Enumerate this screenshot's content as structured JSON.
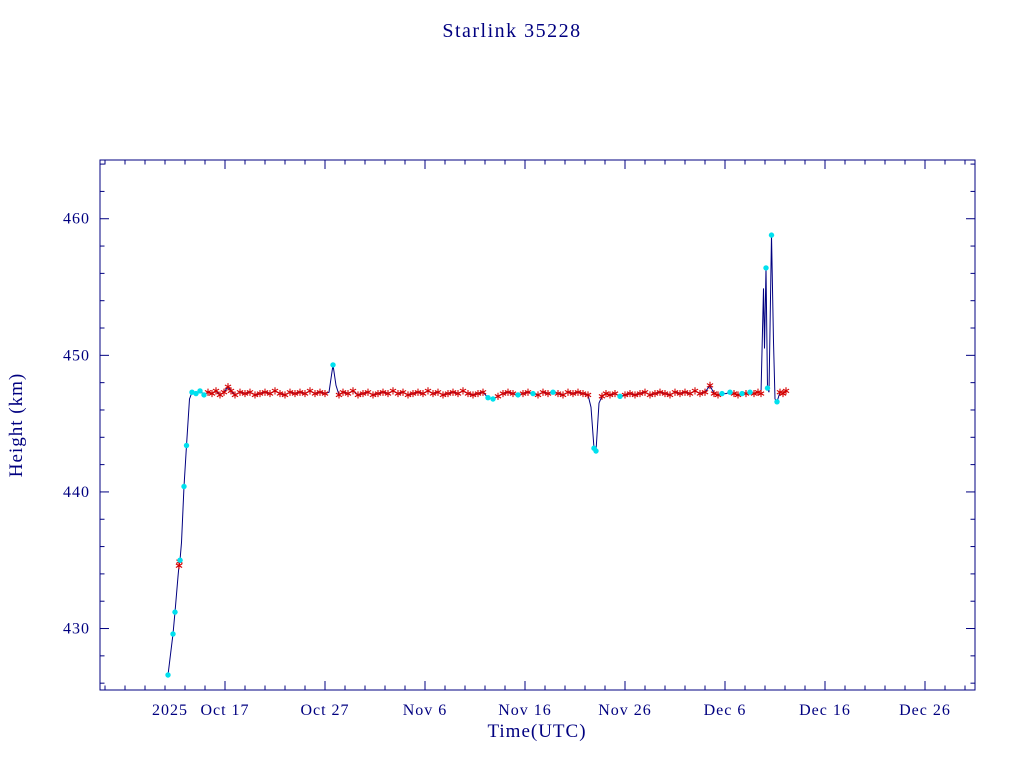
{
  "chart_data": {
    "type": "line",
    "title": "Starlink 35228",
    "xlabel": "Time(UTC)",
    "ylabel": "Height (km)",
    "legend": "none",
    "grid": false,
    "colors": {
      "axis": "#000080",
      "line": "#000080",
      "cyan_marker": "#00e0ee",
      "red_marker": "#d40000",
      "background": "#ffffff"
    },
    "x_axis": {
      "unit": "days since 2025-10-04 12:00 UTC",
      "min": 0,
      "max": 87.5,
      "year_label": "2025",
      "year_label_day": 7.0,
      "minor_start": 0.5,
      "minor_step": 2,
      "major_ticks": [
        {
          "day": 12.5,
          "label": "Oct 17"
        },
        {
          "day": 22.5,
          "label": "Oct 27"
        },
        {
          "day": 32.5,
          "label": "Nov 6"
        },
        {
          "day": 42.5,
          "label": "Nov 16"
        },
        {
          "day": 52.5,
          "label": "Nov 26"
        },
        {
          "day": 62.5,
          "label": "Dec 6"
        },
        {
          "day": 72.5,
          "label": "Dec 16"
        },
        {
          "day": 82.5,
          "label": "Dec 26"
        }
      ]
    },
    "y_axis": {
      "unit": "km",
      "min": 425.5,
      "max": 464.3,
      "minor_start": 426,
      "minor_step": 2,
      "major_ticks": [
        430,
        440,
        450,
        460
      ]
    },
    "line_points": [
      [
        6.8,
        426.6
      ],
      [
        7.0,
        427.8
      ],
      [
        7.3,
        429.6
      ],
      [
        7.5,
        431.2
      ],
      [
        7.8,
        433.8
      ],
      [
        7.9,
        434.6
      ],
      [
        8.0,
        435.0
      ],
      [
        8.15,
        436.3
      ],
      [
        8.4,
        440.4
      ],
      [
        8.65,
        443.4
      ],
      [
        8.95,
        446.8
      ],
      [
        9.2,
        447.3
      ],
      [
        9.6,
        447.2
      ],
      [
        10.0,
        447.4
      ],
      [
        10.4,
        447.1
      ],
      [
        10.8,
        447.3
      ],
      [
        11.2,
        447.2
      ],
      [
        11.6,
        447.4
      ],
      [
        12.0,
        447.1
      ],
      [
        12.4,
        447.3
      ],
      [
        12.8,
        447.7
      ],
      [
        13.1,
        447.4
      ],
      [
        13.5,
        447.1
      ],
      [
        14.0,
        447.3
      ],
      [
        14.5,
        447.2
      ],
      [
        15.0,
        447.3
      ],
      [
        15.5,
        447.1
      ],
      [
        16.0,
        447.2
      ],
      [
        16.5,
        447.3
      ],
      [
        17.0,
        447.2
      ],
      [
        17.5,
        447.4
      ],
      [
        18.0,
        447.2
      ],
      [
        18.5,
        447.1
      ],
      [
        19.0,
        447.3
      ],
      [
        19.5,
        447.2
      ],
      [
        20.0,
        447.3
      ],
      [
        20.5,
        447.2
      ],
      [
        21.0,
        447.4
      ],
      [
        21.5,
        447.2
      ],
      [
        22.0,
        447.3
      ],
      [
        22.5,
        447.2
      ],
      [
        22.9,
        447.3
      ],
      [
        23.3,
        449.3
      ],
      [
        23.6,
        447.8
      ],
      [
        23.9,
        447.1
      ],
      [
        24.3,
        447.3
      ],
      [
        24.8,
        447.2
      ],
      [
        25.3,
        447.4
      ],
      [
        25.8,
        447.1
      ],
      [
        26.3,
        447.2
      ],
      [
        26.8,
        447.3
      ],
      [
        27.3,
        447.1
      ],
      [
        27.8,
        447.2
      ],
      [
        28.3,
        447.3
      ],
      [
        28.8,
        447.2
      ],
      [
        29.3,
        447.4
      ],
      [
        29.8,
        447.2
      ],
      [
        30.3,
        447.3
      ],
      [
        30.8,
        447.1
      ],
      [
        31.3,
        447.2
      ],
      [
        31.8,
        447.3
      ],
      [
        32.3,
        447.2
      ],
      [
        32.8,
        447.4
      ],
      [
        33.3,
        447.2
      ],
      [
        33.8,
        447.3
      ],
      [
        34.3,
        447.1
      ],
      [
        34.8,
        447.2
      ],
      [
        35.3,
        447.3
      ],
      [
        35.8,
        447.2
      ],
      [
        36.3,
        447.4
      ],
      [
        36.8,
        447.2
      ],
      [
        37.3,
        447.1
      ],
      [
        37.8,
        447.2
      ],
      [
        38.3,
        447.3
      ],
      [
        38.8,
        446.9
      ],
      [
        39.3,
        446.8
      ],
      [
        39.8,
        447.0
      ],
      [
        40.3,
        447.2
      ],
      [
        40.8,
        447.3
      ],
      [
        41.3,
        447.2
      ],
      [
        41.8,
        447.1
      ],
      [
        42.3,
        447.2
      ],
      [
        42.8,
        447.3
      ],
      [
        43.3,
        447.2
      ],
      [
        43.8,
        447.1
      ],
      [
        44.3,
        447.3
      ],
      [
        44.8,
        447.2
      ],
      [
        45.3,
        447.3
      ],
      [
        45.8,
        447.2
      ],
      [
        46.3,
        447.1
      ],
      [
        46.8,
        447.3
      ],
      [
        47.3,
        447.2
      ],
      [
        47.8,
        447.3
      ],
      [
        48.3,
        447.2
      ],
      [
        48.8,
        447.1
      ],
      [
        49.1,
        446.2
      ],
      [
        49.4,
        443.2
      ],
      [
        49.6,
        443.0
      ],
      [
        49.9,
        446.5
      ],
      [
        50.2,
        447.0
      ],
      [
        50.6,
        447.2
      ],
      [
        51.0,
        447.1
      ],
      [
        51.5,
        447.2
      ],
      [
        52.0,
        447.0
      ],
      [
        52.5,
        447.1
      ],
      [
        53.0,
        447.2
      ],
      [
        53.5,
        447.1
      ],
      [
        54.0,
        447.2
      ],
      [
        54.5,
        447.3
      ],
      [
        55.0,
        447.1
      ],
      [
        55.5,
        447.2
      ],
      [
        56.0,
        447.3
      ],
      [
        56.5,
        447.2
      ],
      [
        57.0,
        447.1
      ],
      [
        57.5,
        447.3
      ],
      [
        58.0,
        447.2
      ],
      [
        58.5,
        447.3
      ],
      [
        59.0,
        447.2
      ],
      [
        59.5,
        447.4
      ],
      [
        60.0,
        447.2
      ],
      [
        60.5,
        447.3
      ],
      [
        61.0,
        447.8
      ],
      [
        61.4,
        447.2
      ],
      [
        61.8,
        447.1
      ],
      [
        62.2,
        447.2
      ],
      [
        62.6,
        447.2
      ],
      [
        63.0,
        447.3
      ],
      [
        63.4,
        447.2
      ],
      [
        63.8,
        447.1
      ],
      [
        64.2,
        447.2
      ],
      [
        64.6,
        447.2
      ],
      [
        65.0,
        447.3
      ],
      [
        65.4,
        447.2
      ],
      [
        65.8,
        447.3
      ],
      [
        66.1,
        447.2
      ],
      [
        66.35,
        454.9
      ],
      [
        66.45,
        450.5
      ],
      [
        66.6,
        456.4
      ],
      [
        66.75,
        447.6
      ],
      [
        66.9,
        447.3
      ],
      [
        67.15,
        458.8
      ],
      [
        67.35,
        451.0
      ],
      [
        67.5,
        446.8
      ],
      [
        67.7,
        446.6
      ],
      [
        68.0,
        447.3
      ],
      [
        68.3,
        447.2
      ],
      [
        68.6,
        447.4
      ]
    ],
    "cyan_points": [
      [
        6.8,
        426.6
      ],
      [
        7.3,
        429.6
      ],
      [
        7.5,
        431.2
      ],
      [
        8.0,
        435.0
      ],
      [
        8.4,
        440.4
      ],
      [
        8.65,
        443.4
      ],
      [
        9.2,
        447.3
      ],
      [
        9.6,
        447.2
      ],
      [
        10.0,
        447.4
      ],
      [
        10.4,
        447.1
      ],
      [
        23.3,
        449.3
      ],
      [
        38.8,
        446.9
      ],
      [
        39.3,
        446.8
      ],
      [
        41.8,
        447.1
      ],
      [
        43.3,
        447.2
      ],
      [
        45.3,
        447.3
      ],
      [
        49.4,
        443.2
      ],
      [
        49.6,
        443.0
      ],
      [
        52.0,
        447.0
      ],
      [
        62.2,
        447.2
      ],
      [
        63.0,
        447.3
      ],
      [
        64.2,
        447.2
      ],
      [
        65.0,
        447.3
      ],
      [
        66.6,
        456.4
      ],
      [
        66.75,
        447.6
      ],
      [
        67.15,
        458.8
      ],
      [
        67.7,
        446.6
      ]
    ],
    "red_points": [
      [
        7.9,
        434.6
      ],
      [
        7.95,
        434.9
      ],
      [
        10.8,
        447.3
      ],
      [
        11.2,
        447.2
      ],
      [
        11.6,
        447.4
      ],
      [
        12.0,
        447.1
      ],
      [
        12.4,
        447.3
      ],
      [
        12.8,
        447.7
      ],
      [
        13.1,
        447.4
      ],
      [
        13.5,
        447.1
      ],
      [
        14.0,
        447.3
      ],
      [
        14.5,
        447.2
      ],
      [
        15.0,
        447.3
      ],
      [
        15.5,
        447.1
      ],
      [
        16.0,
        447.2
      ],
      [
        16.5,
        447.3
      ],
      [
        17.0,
        447.2
      ],
      [
        17.5,
        447.4
      ],
      [
        18.0,
        447.2
      ],
      [
        18.5,
        447.1
      ],
      [
        19.0,
        447.3
      ],
      [
        19.5,
        447.2
      ],
      [
        20.0,
        447.3
      ],
      [
        20.5,
        447.2
      ],
      [
        21.0,
        447.4
      ],
      [
        21.5,
        447.2
      ],
      [
        22.0,
        447.3
      ],
      [
        22.5,
        447.2
      ],
      [
        23.9,
        447.1
      ],
      [
        24.3,
        447.3
      ],
      [
        24.8,
        447.2
      ],
      [
        25.3,
        447.4
      ],
      [
        25.8,
        447.1
      ],
      [
        26.3,
        447.2
      ],
      [
        26.8,
        447.3
      ],
      [
        27.3,
        447.1
      ],
      [
        27.8,
        447.2
      ],
      [
        28.3,
        447.3
      ],
      [
        28.8,
        447.2
      ],
      [
        29.3,
        447.4
      ],
      [
        29.8,
        447.2
      ],
      [
        30.3,
        447.3
      ],
      [
        30.8,
        447.1
      ],
      [
        31.3,
        447.2
      ],
      [
        31.8,
        447.3
      ],
      [
        32.3,
        447.2
      ],
      [
        32.8,
        447.4
      ],
      [
        33.3,
        447.2
      ],
      [
        33.8,
        447.3
      ],
      [
        34.3,
        447.1
      ],
      [
        34.8,
        447.2
      ],
      [
        35.3,
        447.3
      ],
      [
        35.8,
        447.2
      ],
      [
        36.3,
        447.4
      ],
      [
        36.8,
        447.2
      ],
      [
        37.3,
        447.1
      ],
      [
        37.8,
        447.2
      ],
      [
        38.3,
        447.3
      ],
      [
        39.8,
        447.0
      ],
      [
        40.3,
        447.2
      ],
      [
        40.8,
        447.3
      ],
      [
        41.3,
        447.2
      ],
      [
        42.3,
        447.2
      ],
      [
        42.8,
        447.3
      ],
      [
        43.8,
        447.1
      ],
      [
        44.3,
        447.3
      ],
      [
        44.8,
        447.2
      ],
      [
        45.8,
        447.2
      ],
      [
        46.3,
        447.1
      ],
      [
        46.8,
        447.3
      ],
      [
        47.3,
        447.2
      ],
      [
        47.8,
        447.3
      ],
      [
        48.3,
        447.2
      ],
      [
        48.8,
        447.1
      ],
      [
        50.2,
        447.0
      ],
      [
        50.6,
        447.2
      ],
      [
        51.0,
        447.1
      ],
      [
        51.5,
        447.2
      ],
      [
        52.5,
        447.1
      ],
      [
        53.0,
        447.2
      ],
      [
        53.5,
        447.1
      ],
      [
        54.0,
        447.2
      ],
      [
        54.5,
        447.3
      ],
      [
        55.0,
        447.1
      ],
      [
        55.5,
        447.2
      ],
      [
        56.0,
        447.3
      ],
      [
        56.5,
        447.2
      ],
      [
        57.0,
        447.1
      ],
      [
        57.5,
        447.3
      ],
      [
        58.0,
        447.2
      ],
      [
        58.5,
        447.3
      ],
      [
        59.0,
        447.2
      ],
      [
        59.5,
        447.4
      ],
      [
        60.0,
        447.2
      ],
      [
        60.5,
        447.3
      ],
      [
        61.0,
        447.8
      ],
      [
        61.4,
        447.2
      ],
      [
        61.8,
        447.1
      ],
      [
        63.4,
        447.2
      ],
      [
        63.8,
        447.1
      ],
      [
        64.6,
        447.2
      ],
      [
        65.4,
        447.2
      ],
      [
        65.8,
        447.3
      ],
      [
        66.1,
        447.2
      ],
      [
        68.0,
        447.3
      ],
      [
        68.3,
        447.2
      ],
      [
        68.6,
        447.4
      ]
    ]
  }
}
